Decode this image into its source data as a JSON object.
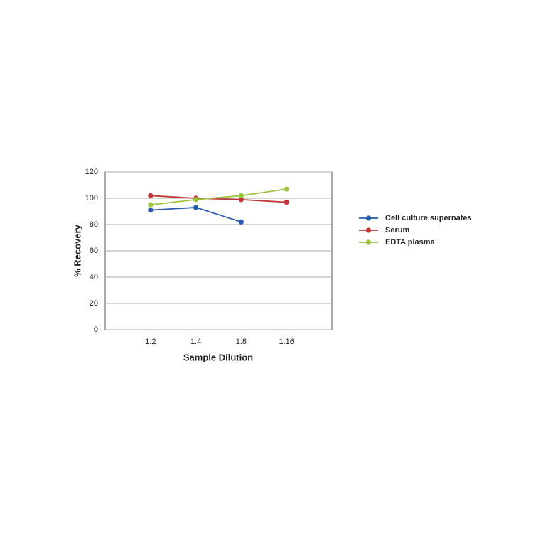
{
  "chart_data": {
    "type": "line",
    "x_label": "Sample Dilution",
    "y_label": "% Recovery",
    "categories": [
      "1:2",
      "1:4",
      "1:8",
      "1:16"
    ],
    "series": [
      {
        "name": "Cell culture supernates",
        "color": "#2b5ba8",
        "values": [
          91,
          93,
          82,
          null
        ]
      },
      {
        "name": "Serum",
        "color": "#c0363a",
        "values": [
          102,
          100,
          99,
          97
        ]
      },
      {
        "name": "EDTA plasma",
        "color": "#9dc43f",
        "values": [
          95,
          99,
          102,
          107
        ]
      }
    ],
    "ylim": [
      0,
      120
    ],
    "yticks": [
      0,
      20,
      40,
      60,
      80,
      100,
      120
    ],
    "grid": true,
    "legend": "right"
  }
}
